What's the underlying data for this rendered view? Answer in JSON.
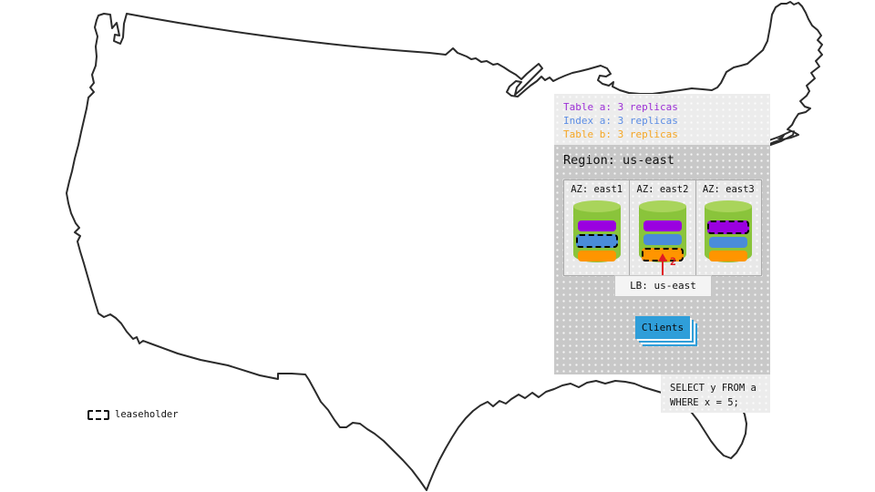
{
  "panel": {
    "legend": [
      {
        "id": "table-a",
        "label": "Table a: 3 replicas",
        "color": "#9c2fd6"
      },
      {
        "id": "index-a",
        "label": "Index a: 3 replicas",
        "color": "#5c8de4"
      },
      {
        "id": "table-b",
        "label": "Table b: 3 replicas",
        "color": "#f6a623"
      }
    ],
    "region": {
      "title": "Region: us-east",
      "azs": [
        {
          "label": "AZ: east1",
          "replicas": [
            {
              "name": "table-a",
              "color": "#9a00e0",
              "leaseholder": false
            },
            {
              "name": "index-a",
              "color": "#4a8cd9",
              "leaseholder": true
            },
            {
              "name": "table-b",
              "color": "#ff9500",
              "leaseholder": false
            }
          ]
        },
        {
          "label": "AZ: east2",
          "replicas": [
            {
              "name": "table-a",
              "color": "#9a00e0",
              "leaseholder": false
            },
            {
              "name": "index-a",
              "color": "#4a8cd9",
              "leaseholder": false
            },
            {
              "name": "table-b",
              "color": "#ff9500",
              "leaseholder": true
            }
          ]
        },
        {
          "label": "AZ: east3",
          "replicas": [
            {
              "name": "table-a",
              "color": "#9a00e0",
              "leaseholder": true
            },
            {
              "name": "index-a",
              "color": "#4a8cd9",
              "leaseholder": false
            },
            {
              "name": "table-b",
              "color": "#ff9500",
              "leaseholder": false
            }
          ]
        }
      ],
      "arrow": {
        "label": "2",
        "color": "#e01b24"
      },
      "lb_label": "LB: us-east",
      "clients_label": "Clients",
      "clients_color": "#2f9ed9"
    }
  },
  "query_box": {
    "line1": "SELECT y FROM a",
    "line2": "WHERE x = 5;"
  },
  "map_legend": {
    "label": "leaseholder"
  },
  "colors": {
    "cylinder_body": "#8ac43b",
    "cylinder_top": "#a9d45b",
    "map_outline": "#2b2b2b"
  }
}
